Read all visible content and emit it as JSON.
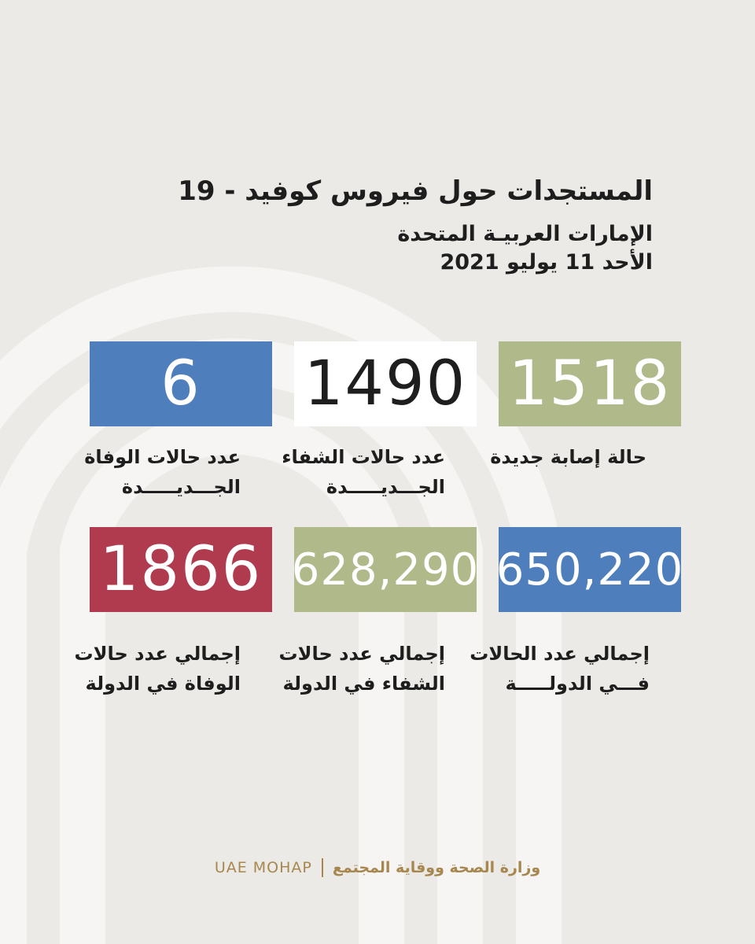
{
  "header": {
    "title": "المستجدات حول فيروس كوفيد - 19",
    "country": "الإمارات العربيـة المتحدة",
    "date": "الأحد 11 يوليو 2021"
  },
  "stats": [
    {
      "value": "1518",
      "label_line1": "حالة إصابة جديدة",
      "label_line2": "",
      "color": "#b0b98a",
      "text_color": "#ffffff"
    },
    {
      "value": "1490",
      "label_line1": "عدد حالات الشفاء",
      "label_line2": "الجـــديـــــدة",
      "color": "#ffffff",
      "text_color": "#1e1e1e"
    },
    {
      "value": "6",
      "label_line1": "عدد حالات الوفاة",
      "label_line2": "الجـــديـــــدة",
      "color": "#4e7ebc",
      "text_color": "#ffffff"
    },
    {
      "value": "650,220",
      "label_line1": "إجمالي عدد الحالات",
      "label_line2": "فـــي الدولـــــة",
      "color": "#4e7ebc",
      "text_color": "#ffffff"
    },
    {
      "value": "628,290",
      "label_line1": "إجمالي عدد حالات",
      "label_line2": "الشفاء في الدولة",
      "color": "#b0b98a",
      "text_color": "#ffffff"
    },
    {
      "value": "1866",
      "label_line1": "إجمالي عدد حالات",
      "label_line2": "الوفاة في الدولة",
      "color": "#b03a4e",
      "text_color": "#ffffff"
    }
  ],
  "footer": {
    "english": "UAE MOHAP",
    "arabic": "وزارة الصحة ووقاية المجتمع"
  }
}
